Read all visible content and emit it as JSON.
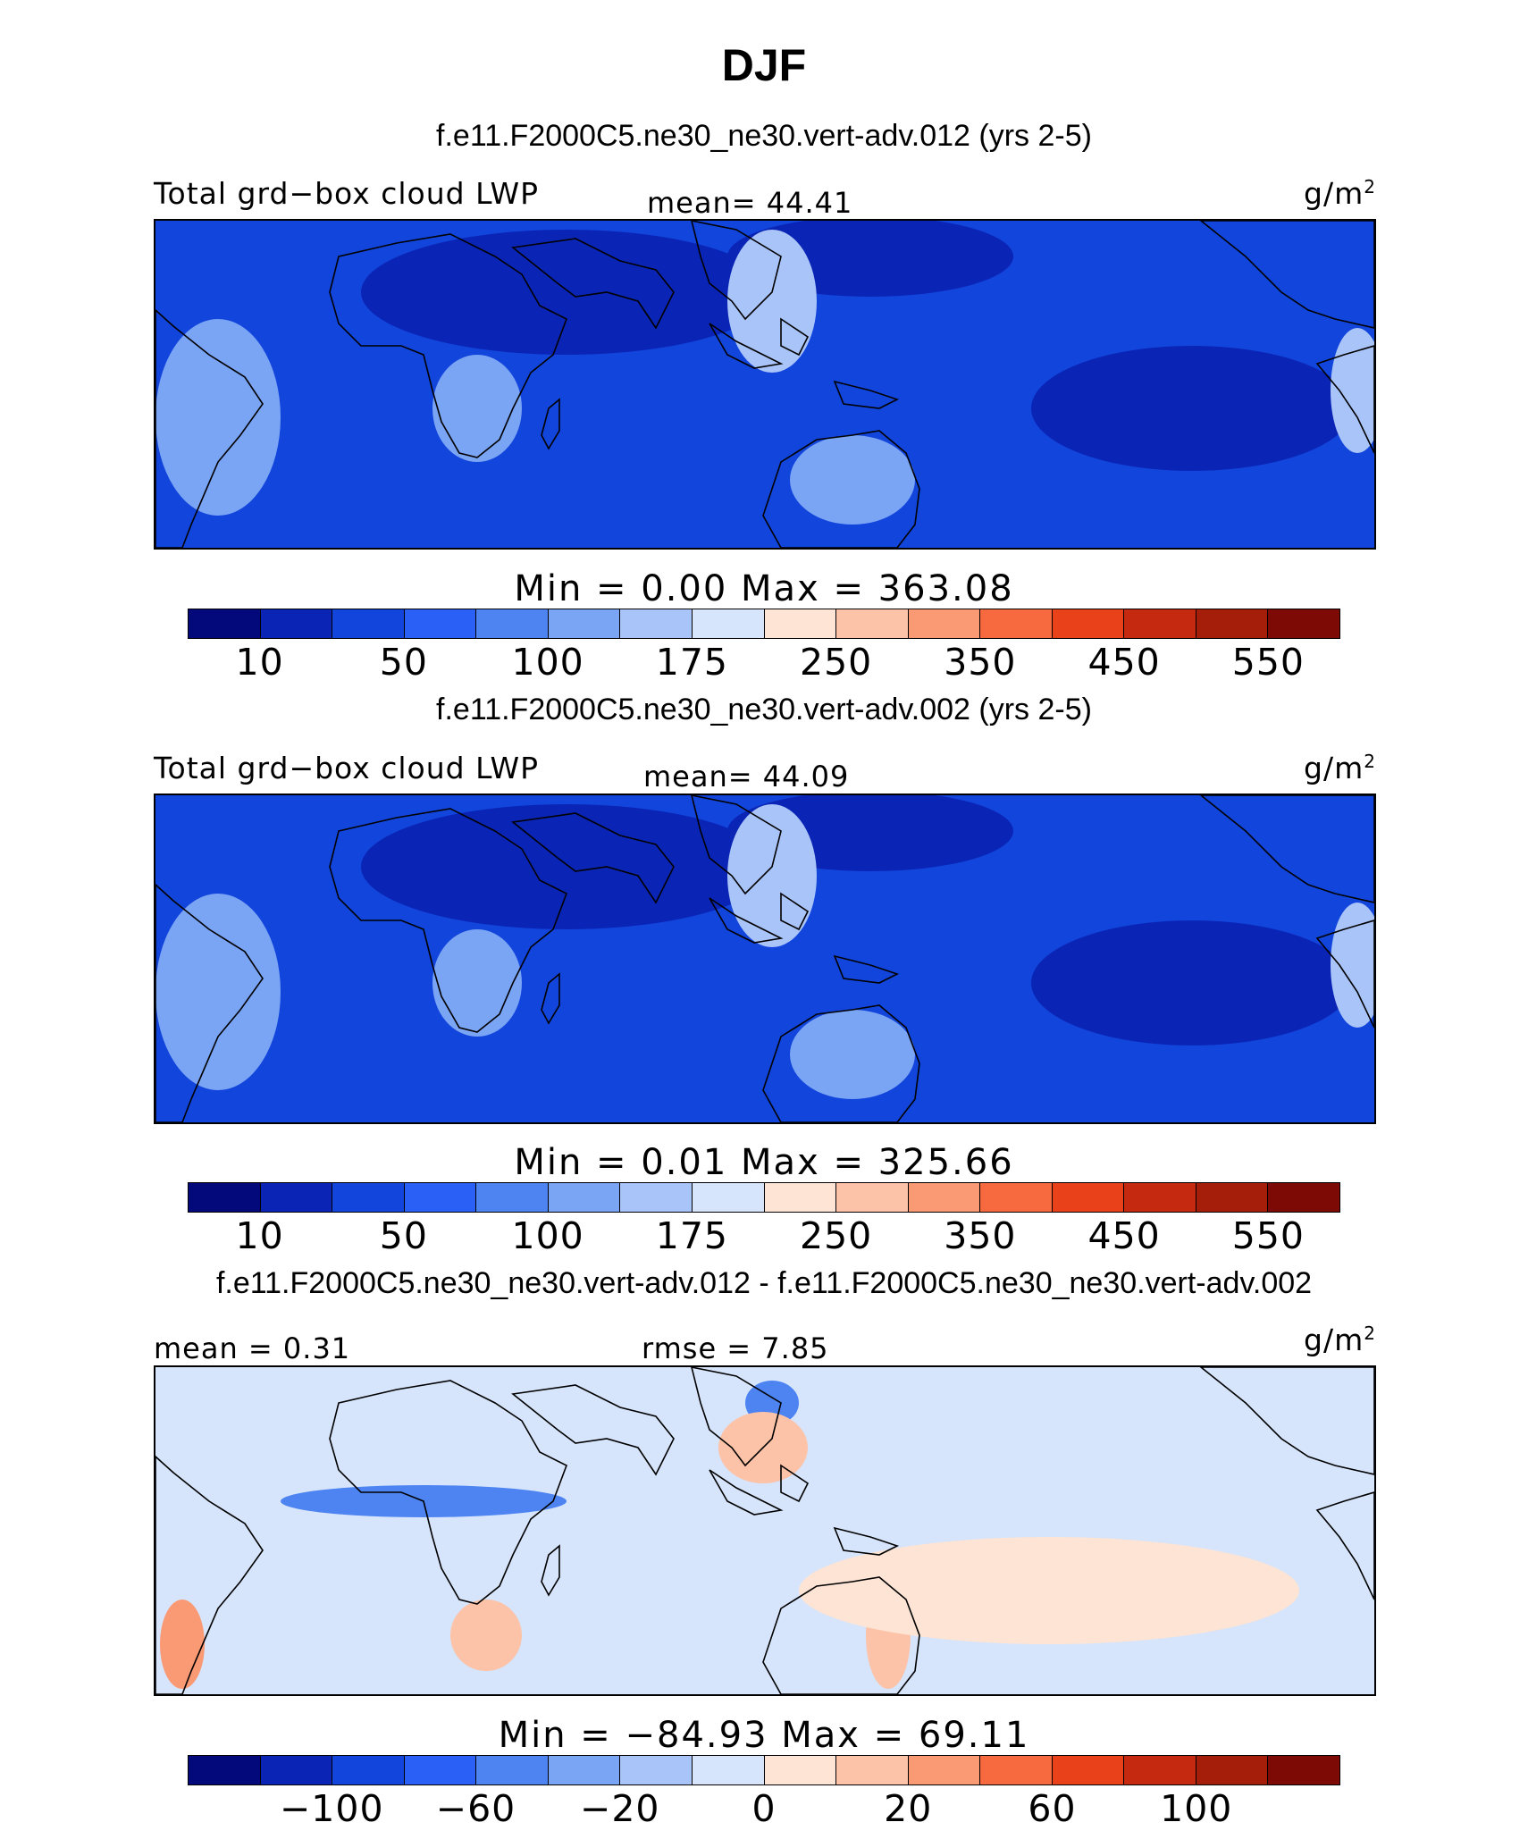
{
  "title": "DJF",
  "colors": {
    "scale": [
      "#03087a",
      "#0a25b5",
      "#1245dc",
      "#2a60f5",
      "#4d84f2",
      "#7aa4f4",
      "#a9c4f8",
      "#d6e5fb",
      "#fde4d4",
      "#fcc3a8",
      "#fa9a74",
      "#f76a40",
      "#e9421b",
      "#c52a10",
      "#a41e0a",
      "#7d0a04"
    ],
    "coast": "#000000"
  },
  "panels": [
    {
      "case_title": "f.e11.F2000C5.ne30_ne30.vert-adv.012 (yrs 2-5)",
      "variable": "Total grd−box cloud LWP",
      "stat_left": "",
      "stat_mid": "mean=  44.41",
      "units": "g/m",
      "units_sup": "2",
      "minmax": "Min =    0.00  Max =  363.08",
      "ticks": [
        "10",
        "50",
        "100",
        "175",
        "250",
        "350",
        "450",
        "550"
      ],
      "background_level": 2
    },
    {
      "case_title": "f.e11.F2000C5.ne30_ne30.vert-adv.002 (yrs 2-5)",
      "variable": "Total grd−box cloud LWP",
      "stat_left": "",
      "stat_mid": "mean=  44.09",
      "units": "g/m",
      "units_sup": "2",
      "minmax": "Min =    0.01  Max =  325.66",
      "ticks": [
        "10",
        "50",
        "100",
        "175",
        "250",
        "350",
        "450",
        "550"
      ],
      "background_level": 2
    },
    {
      "case_title": "f.e11.F2000C5.ne30_ne30.vert-adv.012 - f.e11.F2000C5.ne30_ne30.vert-adv.002",
      "variable": "",
      "stat_left": "mean =   0.31",
      "stat_mid": "rmse =   7.85",
      "units": "g/m",
      "units_sup": "2",
      "minmax": "Min = −84.93  Max =   69.11",
      "ticks": [
        "−100",
        "−60",
        "−20",
        "0",
        "20",
        "60",
        "100"
      ],
      "background_level": 7
    }
  ]
}
